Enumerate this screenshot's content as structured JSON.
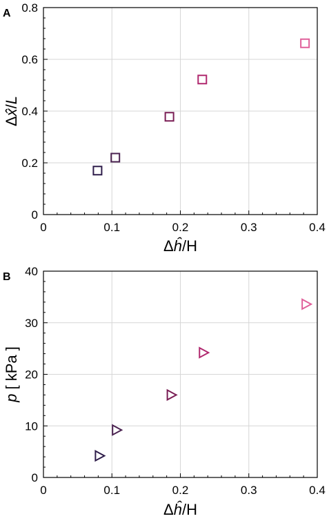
{
  "chart_data": [
    {
      "panel_label": "A",
      "type": "scatter",
      "marker": "square",
      "xlabel_parts": [
        "Δ",
        "ĥ",
        "/H"
      ],
      "ylabel_parts": [
        "Δ",
        "x̂",
        "/",
        "L"
      ],
      "xlim": [
        0,
        0.4
      ],
      "ylim": [
        0,
        0.8
      ],
      "xticks": [
        0,
        0.1,
        0.2,
        0.3,
        0.4
      ],
      "xtick_labels": [
        "0",
        "0.1",
        "0.2",
        "0.3",
        "0.4"
      ],
      "yticks": [
        0,
        0.2,
        0.4,
        0.6,
        0.8
      ],
      "ytick_labels": [
        "0",
        "0.2",
        "0.4",
        "0.6",
        "0.8"
      ],
      "grid": true,
      "points": [
        {
          "x": 0.079,
          "y": 0.17,
          "color": "#2e1d4a"
        },
        {
          "x": 0.105,
          "y": 0.22,
          "color": "#4a2250"
        },
        {
          "x": 0.184,
          "y": 0.378,
          "color": "#7a1e55"
        },
        {
          "x": 0.232,
          "y": 0.522,
          "color": "#b0286e"
        },
        {
          "x": 0.382,
          "y": 0.662,
          "color": "#e0609a"
        }
      ]
    },
    {
      "panel_label": "B",
      "type": "scatter",
      "marker": "triangle-right",
      "xlabel_parts": [
        "Δ",
        "ĥ",
        "/H"
      ],
      "ylabel_parts": [
        "p",
        " [ kPa ]"
      ],
      "xlim": [
        0,
        0.4
      ],
      "ylim": [
        0,
        40
      ],
      "xticks": [
        0,
        0.1,
        0.2,
        0.3,
        0.4
      ],
      "xtick_labels": [
        "0",
        "0.1",
        "0.2",
        "0.3",
        "0.4"
      ],
      "yticks": [
        0,
        10,
        20,
        30,
        40
      ],
      "ytick_labels": [
        "0",
        "10",
        "20",
        "30",
        "40"
      ],
      "grid": true,
      "points": [
        {
          "x": 0.081,
          "y": 4.2,
          "color": "#2e1d4a"
        },
        {
          "x": 0.106,
          "y": 9.2,
          "color": "#4a2250"
        },
        {
          "x": 0.186,
          "y": 16.0,
          "color": "#7a1e55"
        },
        {
          "x": 0.233,
          "y": 24.2,
          "color": "#b0286e"
        },
        {
          "x": 0.383,
          "y": 33.6,
          "color": "#e0609a"
        }
      ]
    }
  ]
}
